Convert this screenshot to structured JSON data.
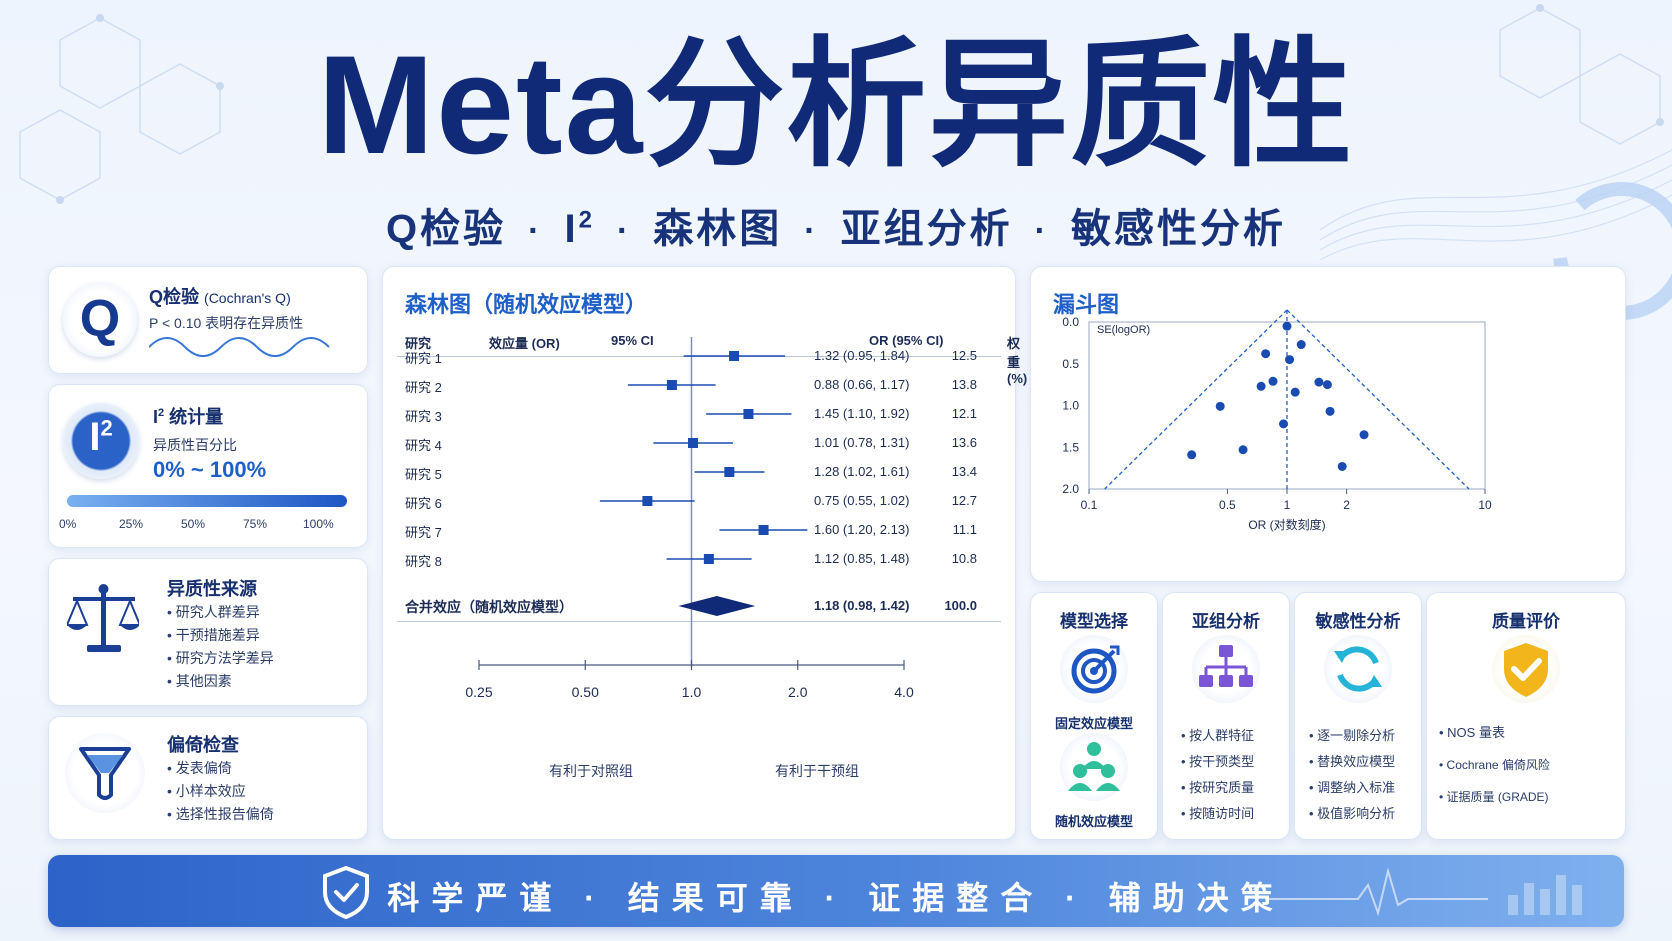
{
  "title": "Meta分析异质性",
  "subtitle": {
    "part1": "Q检验",
    "part2": "I",
    "part2_sup": "2",
    "part3": "森林图",
    "part4": "亚组分析",
    "part5": "敏感性分析",
    "separator": "·"
  },
  "q_card": {
    "icon_letter": "Q",
    "title": "Q检验",
    "title_note": "(Cochran's Q)",
    "desc": "P < 0.10 表明存在异质性"
  },
  "i2_card": {
    "icon_letter": "I",
    "icon_sup": "2",
    "title": "I",
    "title_sup": "2",
    "title_rest": " 统计量",
    "desc": "异质性百分比",
    "range": "0% ~ 100%",
    "ticks": [
      "0%",
      "25%",
      "50%",
      "75%",
      "100%"
    ]
  },
  "sources_card": {
    "title": "异质性来源",
    "items": [
      "研究人群差异",
      "干预措施差异",
      "研究方法学差异",
      "其他因素"
    ]
  },
  "bias_card": {
    "title": "偏倚检查",
    "items": [
      "发表偏倚",
      "小样本效应",
      "选择性报告偏倚"
    ]
  },
  "forest": {
    "title": "森林图（随机效应模型）",
    "headers": {
      "study": "研究",
      "effect": "效应量 (OR)",
      "ci": "95% CI",
      "or_ci": "OR (95% CI)",
      "weight": "权重 (%)"
    },
    "studies": [
      {
        "name": "研究 1",
        "or": 1.32,
        "lo": 0.95,
        "hi": 1.84,
        "label": "1.32 (0.95, 1.84)",
        "weight": "12.5"
      },
      {
        "name": "研究 2",
        "or": 0.88,
        "lo": 0.66,
        "hi": 1.17,
        "label": "0.88 (0.66, 1.17)",
        "weight": "13.8"
      },
      {
        "name": "研究 3",
        "or": 1.45,
        "lo": 1.1,
        "hi": 1.92,
        "label": "1.45 (1.10, 1.92)",
        "weight": "12.1"
      },
      {
        "name": "研究 4",
        "or": 1.01,
        "lo": 0.78,
        "hi": 1.31,
        "label": "1.01 (0.78, 1.31)",
        "weight": "13.6"
      },
      {
        "name": "研究 5",
        "or": 1.28,
        "lo": 1.02,
        "hi": 1.61,
        "label": "1.28 (1.02, 1.61)",
        "weight": "13.4"
      },
      {
        "name": "研究 6",
        "or": 0.75,
        "lo": 0.55,
        "hi": 1.02,
        "label": "0.75 (0.55, 1.02)",
        "weight": "12.7"
      },
      {
        "name": "研究 7",
        "or": 1.6,
        "lo": 1.2,
        "hi": 2.13,
        "label": "1.60 (1.20, 2.13)",
        "weight": "11.1"
      },
      {
        "name": "研究 8",
        "or": 1.12,
        "lo": 0.85,
        "hi": 1.48,
        "label": "1.12 (0.85, 1.48)",
        "weight": "10.8"
      }
    ],
    "pooled": {
      "name": "合并效应（随机效应模型）",
      "or": 1.18,
      "lo": 0.98,
      "hi": 1.42,
      "label": "1.18 (0.98, 1.42)",
      "weight": "100.0"
    },
    "axis_ticks": [
      0.25,
      0.5,
      1.0,
      2.0,
      4.0
    ],
    "axis_tick_labels": [
      "0.25",
      "0.50",
      "1.0",
      "2.0",
      "4.0"
    ],
    "favors_left": "有利于对照组",
    "favors_right": "有利于干预组"
  },
  "chart_data": {
    "type": "scatter",
    "title": "漏斗图",
    "xlabel": "OR (对数刻度)",
    "ylabel": "SE(logOR)",
    "x_scale": "log",
    "xlim": [
      0.1,
      10
    ],
    "ylim": [
      0.0,
      2.0
    ],
    "y_inverted": true,
    "x_ticks": [
      0.1,
      0.5,
      1,
      2,
      10
    ],
    "x_tick_labels": [
      "0.1",
      "0.5",
      "1",
      "2",
      "10"
    ],
    "y_ticks": [
      0.0,
      0.5,
      1.0,
      1.5,
      2.0
    ],
    "y_tick_labels": [
      "0.0",
      "0.5",
      "1.0",
      "1.5",
      "2.0"
    ],
    "points": [
      {
        "x": 1.0,
        "y": 0.05
      },
      {
        "x": 0.78,
        "y": 0.38
      },
      {
        "x": 1.18,
        "y": 0.27
      },
      {
        "x": 1.03,
        "y": 0.45
      },
      {
        "x": 0.85,
        "y": 0.71
      },
      {
        "x": 0.74,
        "y": 0.77
      },
      {
        "x": 1.1,
        "y": 0.84
      },
      {
        "x": 1.45,
        "y": 0.72
      },
      {
        "x": 1.6,
        "y": 0.75
      },
      {
        "x": 0.46,
        "y": 1.01
      },
      {
        "x": 1.65,
        "y": 1.07
      },
      {
        "x": 0.96,
        "y": 1.22
      },
      {
        "x": 2.45,
        "y": 1.35
      },
      {
        "x": 0.33,
        "y": 1.59
      },
      {
        "x": 0.6,
        "y": 1.53
      },
      {
        "x": 1.9,
        "y": 1.73
      }
    ],
    "center_line_x": 1.0,
    "grid": false
  },
  "model_card": {
    "title": "模型选择",
    "fixed": "固定效应模型",
    "random": "随机效应模型"
  },
  "subgroup_card": {
    "title": "亚组分析",
    "items": [
      "按人群特征",
      "按干预类型",
      "按研究质量",
      "按随访时间"
    ]
  },
  "sensitivity_card": {
    "title": "敏感性分析",
    "items": [
      "逐一剔除分析",
      "替换效应模型",
      "调整纳入标准",
      "极值影响分析"
    ]
  },
  "quality_card": {
    "title": "质量评价",
    "items": [
      "NOS 量表",
      "Cochrane 偏倚风险",
      "证据质量 (GRADE)"
    ]
  },
  "footer": {
    "text": "科学严谨 · 结果可靠 · 证据整合 · 辅助决策"
  },
  "colors": {
    "navy": "#102a78",
    "accent": "#1f5fc8",
    "marker": "#1a4bb0",
    "gold": "#f2b51c",
    "teal": "#2fbf9a"
  }
}
